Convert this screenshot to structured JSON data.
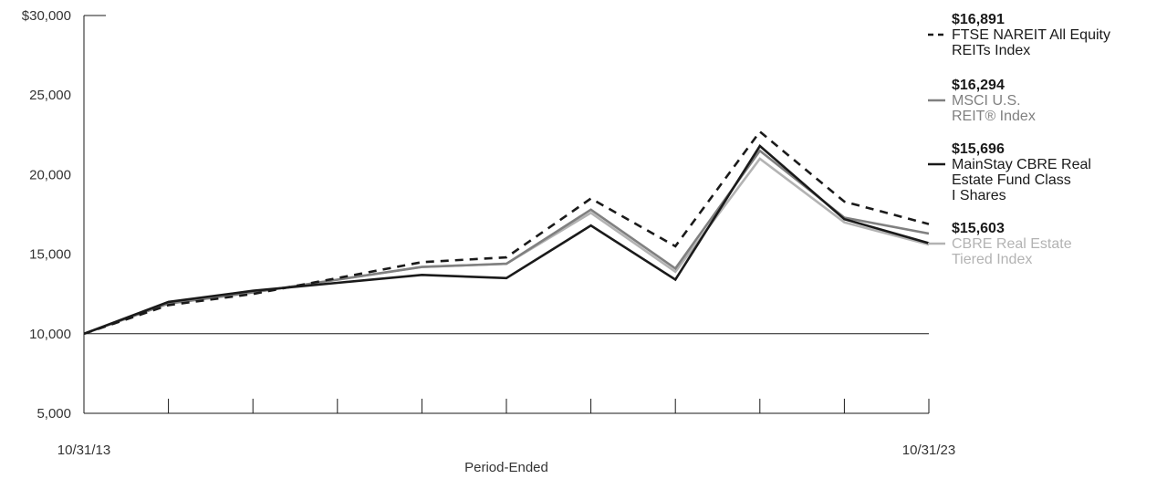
{
  "chart_data": {
    "type": "line",
    "xlabel": "Period-Ended",
    "x": [
      0,
      1,
      2,
      3,
      4,
      5,
      6,
      7,
      8,
      9,
      10
    ],
    "x_tick_labels": [
      "10/31/13",
      "",
      "",
      "",
      "",
      "",
      "",
      "",
      "",
      "",
      "10/31/23"
    ],
    "ylim": [
      5000,
      30000
    ],
    "y_ticks": [
      5000,
      10000,
      15000,
      20000,
      25000,
      30000
    ],
    "y_tick_labels": [
      "5,000",
      "10,000",
      "15,000",
      "20,000",
      "25,000",
      "$30,000"
    ],
    "baseline": 10000,
    "series": [
      {
        "name_lines": [
          "FTSE NAREIT All Equity",
          "REITs Index"
        ],
        "end_value": "$16,891",
        "color": "#1a1a1a",
        "dashed": true,
        "label_color": "#1a1a1a",
        "values": [
          10000,
          11800,
          12500,
          13500,
          14500,
          14800,
          18500,
          15500,
          22700,
          18300,
          16891
        ]
      },
      {
        "name_lines": [
          "MSCI U.S.",
          "REIT® Index"
        ],
        "end_value": "$16,294",
        "color": "#808080",
        "dashed": false,
        "label_color": "#808080",
        "values": [
          10000,
          11900,
          12600,
          13400,
          14200,
          14400,
          17800,
          14100,
          21500,
          17300,
          16294
        ]
      },
      {
        "name_lines": [
          "MainStay CBRE Real",
          "Estate Fund Class",
          "I Shares"
        ],
        "end_value": "$15,696",
        "color": "#1a1a1a",
        "dashed": false,
        "label_color": "#1a1a1a",
        "values": [
          10000,
          12000,
          12700,
          13200,
          13700,
          13500,
          16800,
          13400,
          21800,
          17200,
          15696
        ]
      },
      {
        "name_lines": [
          "CBRE Real Estate",
          "Tiered Index"
        ],
        "end_value": "$15,603",
        "color": "#b3b3b3",
        "dashed": false,
        "label_color": "#b3b3b3",
        "values": [
          10000,
          11900,
          12600,
          13400,
          14200,
          14400,
          17600,
          13900,
          21000,
          17000,
          15603
        ]
      }
    ]
  }
}
